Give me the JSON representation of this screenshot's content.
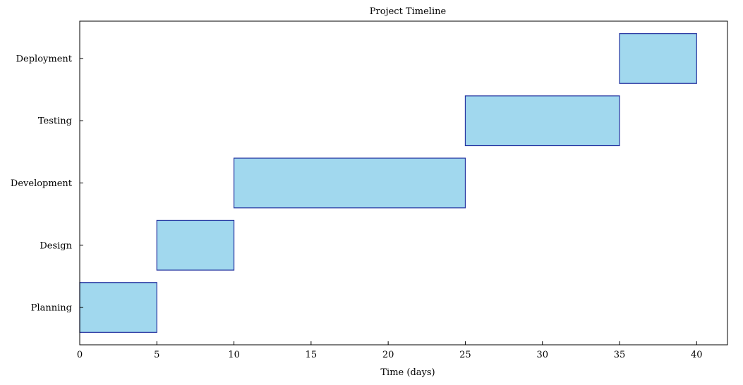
{
  "chart_data": {
    "type": "bar",
    "orientation": "horizontal",
    "title": "Project Timeline",
    "xlabel": "Time (days)",
    "ylabel": "",
    "xlim": [
      0,
      42
    ],
    "x_ticks": [
      0,
      5,
      10,
      15,
      20,
      25,
      30,
      35,
      40
    ],
    "categories": [
      "Planning",
      "Design",
      "Development",
      "Testing",
      "Deployment"
    ],
    "tasks": [
      {
        "label": "Planning",
        "start": 0,
        "end": 5
      },
      {
        "label": "Design",
        "start": 5,
        "end": 10
      },
      {
        "label": "Development",
        "start": 10,
        "end": 25
      },
      {
        "label": "Testing",
        "start": 25,
        "end": 35
      },
      {
        "label": "Deployment",
        "start": 35,
        "end": 40
      }
    ],
    "grid": false,
    "colors": {
      "bar_fill": "#a1d8ee",
      "bar_edge": "#2433a0",
      "axis": "#000000"
    }
  }
}
